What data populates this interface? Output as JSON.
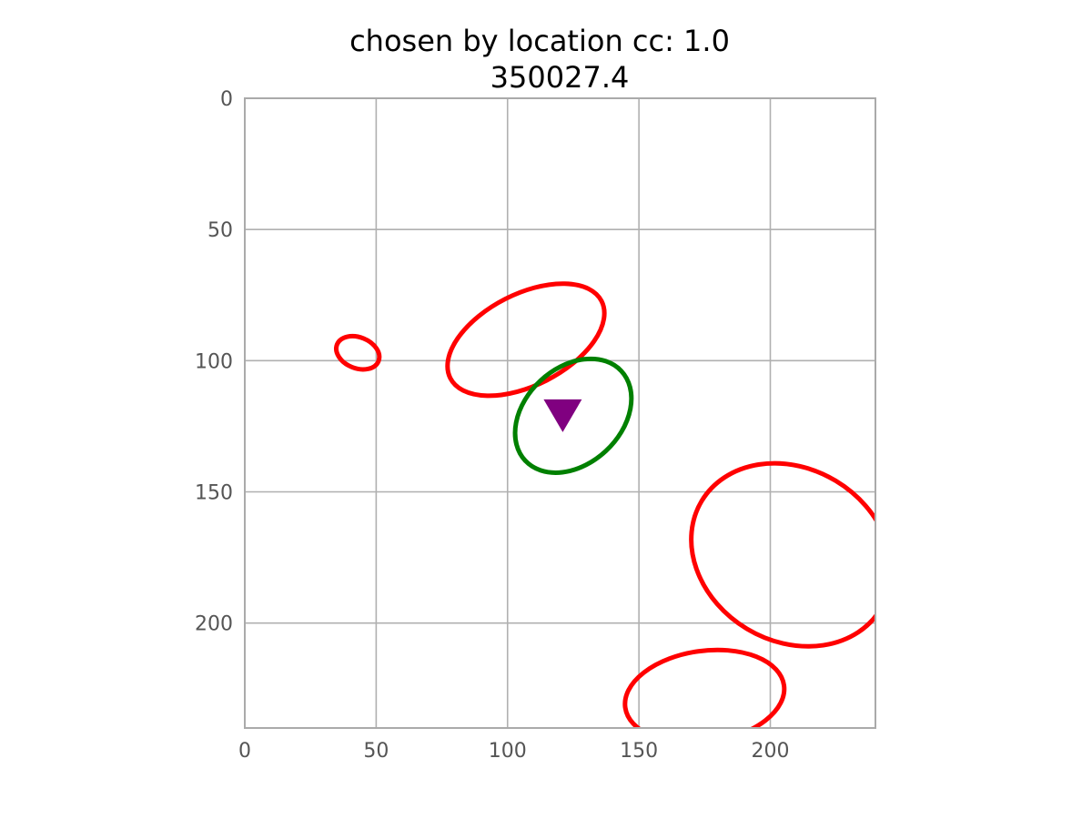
{
  "chart_data": {
    "type": "scatter",
    "title_line1": "chosen by location cc: 1.0",
    "title_line2": "350027.4",
    "xlabel": "",
    "ylabel": "",
    "xlim": [
      0,
      240
    ],
    "ylim": [
      0,
      240
    ],
    "y_inverted": true,
    "grid": true,
    "x_ticks": [
      0,
      50,
      100,
      150,
      200
    ],
    "y_ticks": [
      0,
      50,
      100,
      150,
      200
    ],
    "colors": {
      "grid": "#b0b0b0",
      "axis": "#aaaaaa",
      "ellipse_red": "#ff0000",
      "ellipse_green": "#008000",
      "marker": "#800080"
    },
    "ellipses": [
      {
        "color": "red",
        "cx": 43,
        "cy": 97,
        "rx": 8.5,
        "ry": 5.9,
        "angle": 22
      },
      {
        "color": "red",
        "cx": 107,
        "cy": 92,
        "rx": 32.3,
        "ry": 17.4,
        "angle": -27
      },
      {
        "color": "green",
        "cx": 125,
        "cy": 121,
        "rx": 25.0,
        "ry": 18.3,
        "angle": -43
      },
      {
        "color": "red",
        "cx": 208,
        "cy": 174,
        "rx": 39.8,
        "ry": 32.9,
        "angle": 31
      },
      {
        "color": "red",
        "cx": 175,
        "cy": 228,
        "rx": 30.5,
        "ry": 17.4,
        "angle": -8
      }
    ],
    "markers": [
      {
        "shape": "triangle-down",
        "x": 121,
        "y": 121,
        "color": "purple"
      }
    ]
  }
}
